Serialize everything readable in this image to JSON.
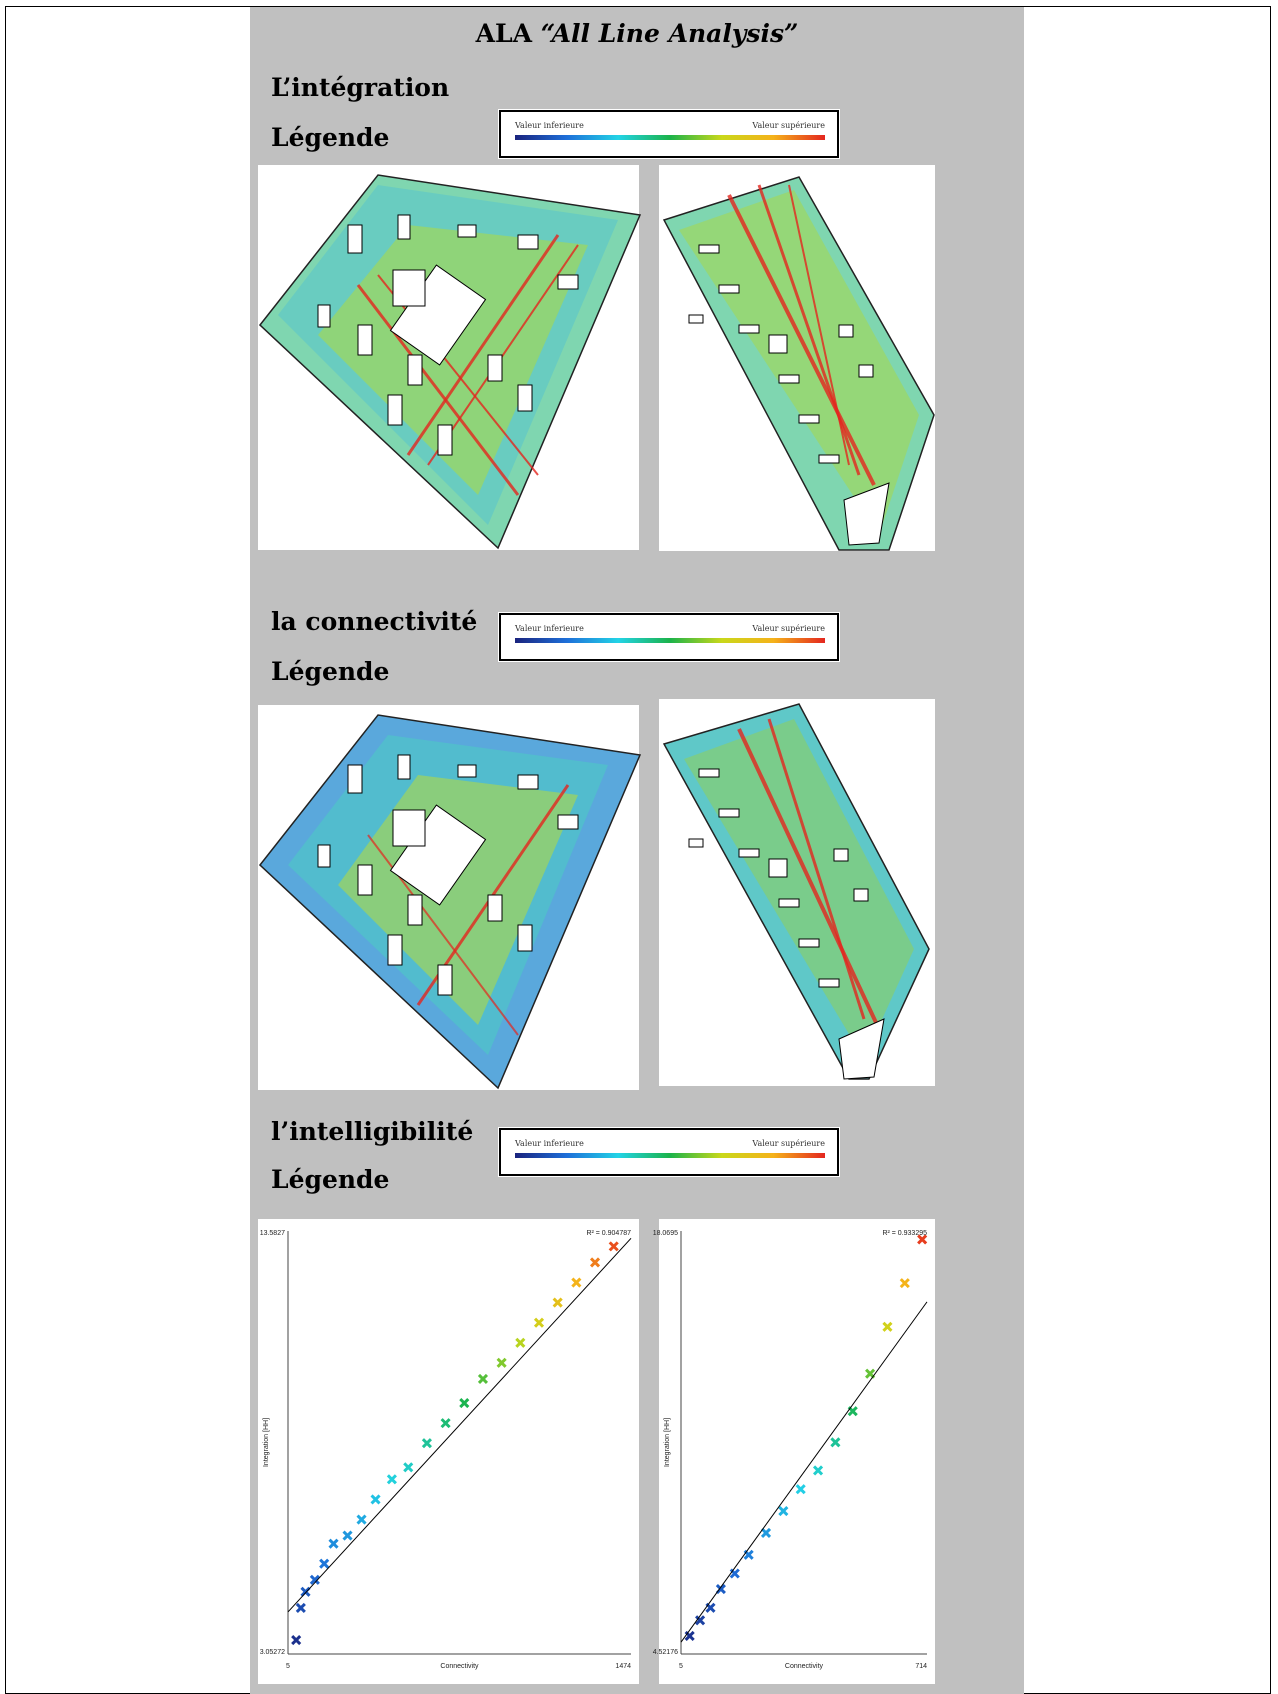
{
  "title": {
    "prefix": "ALA",
    "italic": "“All Line Analysis”"
  },
  "sections": [
    {
      "heading": "L’intégration",
      "legend_heading": "Légende"
    },
    {
      "heading": "la connectivité",
      "legend_heading": "Légende"
    },
    {
      "heading": "l’intelligibilité",
      "legend_heading": "Légende"
    }
  ],
  "legend": {
    "low": "Valeur inferieure",
    "high": "Valeur supérieure"
  },
  "colors": {
    "panel": "#c0c0c0",
    "low": "#1a237e",
    "mid": "#1bb34a",
    "high": "#e4261f"
  },
  "chart_data": [
    {
      "type": "scatter",
      "xlabel": "Connectivity",
      "ylabel": "Integration [HH]",
      "xlim": [
        5,
        1474
      ],
      "ylim": [
        3.05272,
        13.5827
      ],
      "x_ticks": [
        "5",
        "1474"
      ],
      "y_ticks": [
        "3.05272",
        "13.5827"
      ],
      "r2": "R² = 0.904787",
      "trend": [
        [
          5,
          4.1
        ],
        [
          1474,
          13.4
        ]
      ],
      "points": [
        [
          40,
          3.4
        ],
        [
          60,
          4.2
        ],
        [
          80,
          4.6
        ],
        [
          120,
          4.9
        ],
        [
          160,
          5.3
        ],
        [
          200,
          5.8
        ],
        [
          260,
          6.0
        ],
        [
          320,
          6.4
        ],
        [
          380,
          6.9
        ],
        [
          450,
          7.4
        ],
        [
          520,
          7.7
        ],
        [
          600,
          8.3
        ],
        [
          680,
          8.8
        ],
        [
          760,
          9.3
        ],
        [
          840,
          9.9
        ],
        [
          920,
          10.3
        ],
        [
          1000,
          10.8
        ],
        [
          1080,
          11.3
        ],
        [
          1160,
          11.8
        ],
        [
          1240,
          12.3
        ],
        [
          1320,
          12.8
        ],
        [
          1400,
          13.2
        ]
      ]
    },
    {
      "type": "scatter",
      "xlabel": "Connectivity",
      "ylabel": "Integration [HH]",
      "xlim": [
        5,
        714
      ],
      "ylim": [
        4.52176,
        18.0695
      ],
      "x_ticks": [
        "5",
        "714"
      ],
      "y_ticks": [
        "4.52176",
        "18.0695"
      ],
      "r2": "R² = 0.933295",
      "trend": [
        [
          5,
          4.9
        ],
        [
          714,
          15.8
        ]
      ],
      "points": [
        [
          30,
          5.1
        ],
        [
          60,
          5.6
        ],
        [
          90,
          6.0
        ],
        [
          120,
          6.6
        ],
        [
          160,
          7.1
        ],
        [
          200,
          7.7
        ],
        [
          250,
          8.4
        ],
        [
          300,
          9.1
        ],
        [
          350,
          9.8
        ],
        [
          400,
          10.4
        ],
        [
          450,
          11.3
        ],
        [
          500,
          12.3
        ],
        [
          550,
          13.5
        ],
        [
          600,
          15.0
        ],
        [
          650,
          16.4
        ],
        [
          700,
          17.8
        ]
      ]
    }
  ]
}
